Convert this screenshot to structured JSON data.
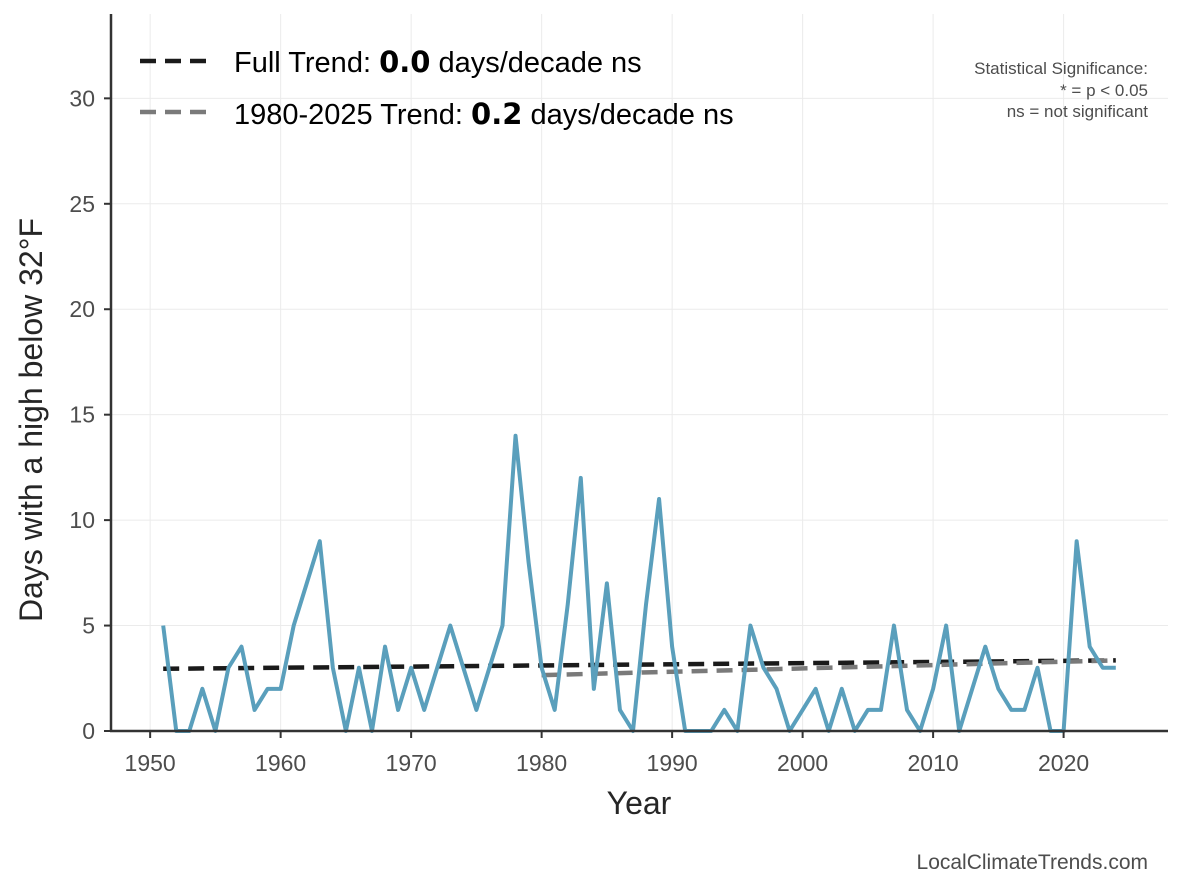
{
  "chart_data": {
    "type": "line",
    "xlabel": "Year",
    "ylabel": "Days with a high below 32°F",
    "xlim": [
      1947,
      2028
    ],
    "ylim": [
      0,
      34
    ],
    "xticks": [
      1950,
      1960,
      1970,
      1980,
      1990,
      2000,
      2010,
      2020
    ],
    "yticks": [
      0,
      5,
      10,
      15,
      20,
      25,
      30
    ],
    "grid": true,
    "series": [
      {
        "color": "#5a9fbc",
        "x": [
          1951,
          1952,
          1953,
          1954,
          1955,
          1956,
          1957,
          1958,
          1959,
          1960,
          1961,
          1962,
          1963,
          1964,
          1965,
          1966,
          1967,
          1968,
          1969,
          1970,
          1971,
          1972,
          1973,
          1974,
          1975,
          1976,
          1977,
          1978,
          1979,
          1980,
          1981,
          1982,
          1983,
          1984,
          1985,
          1986,
          1987,
          1988,
          1989,
          1990,
          1991,
          1992,
          1993,
          1994,
          1995,
          1996,
          1997,
          1998,
          1999,
          2000,
          2001,
          2002,
          2003,
          2004,
          2005,
          2006,
          2007,
          2008,
          2009,
          2010,
          2011,
          2012,
          2013,
          2014,
          2015,
          2016,
          2017,
          2018,
          2019,
          2020,
          2021,
          2022,
          2023,
          2024
        ],
        "y": [
          5,
          0,
          0,
          2,
          0,
          3,
          4,
          1,
          2,
          2,
          5,
          7,
          9,
          3,
          0,
          3,
          0,
          4,
          1,
          3,
          1,
          3,
          5,
          3,
          1,
          3,
          5,
          14,
          8,
          3,
          1,
          6,
          12,
          2,
          7,
          1,
          0,
          6,
          11,
          4,
          0,
          0,
          0,
          1,
          0,
          5,
          3,
          2,
          0,
          1,
          2,
          0,
          2,
          0,
          1,
          1,
          5,
          1,
          0,
          2,
          5,
          0,
          2,
          4,
          2,
          1,
          1,
          3,
          0,
          0,
          9,
          4,
          3,
          3
        ]
      }
    ],
    "trend_lines": [
      {
        "name": "Full Trend",
        "x": [
          1951,
          2024
        ],
        "y": [
          2.95,
          3.35
        ],
        "color": "#1a1a1a"
      },
      {
        "name": "1980-2025 Trend",
        "x": [
          1980,
          2024
        ],
        "y": [
          2.65,
          3.35
        ],
        "color": "#7a7a7a"
      }
    ],
    "legend": {
      "placement": "top-left",
      "entries": [
        {
          "prefix": "Full Trend: ",
          "value": "0.0",
          "suffix": " days/decade ns"
        },
        {
          "prefix": "1980-2025 Trend: ",
          "value": "0.2",
          "suffix": " days/decade ns"
        }
      ]
    },
    "significance_note": {
      "placement": "top-right",
      "lines": [
        "Statistical Significance:",
        "* = p < 0.05",
        "ns = not significant"
      ]
    }
  },
  "credit": "LocalClimateTrends.com"
}
